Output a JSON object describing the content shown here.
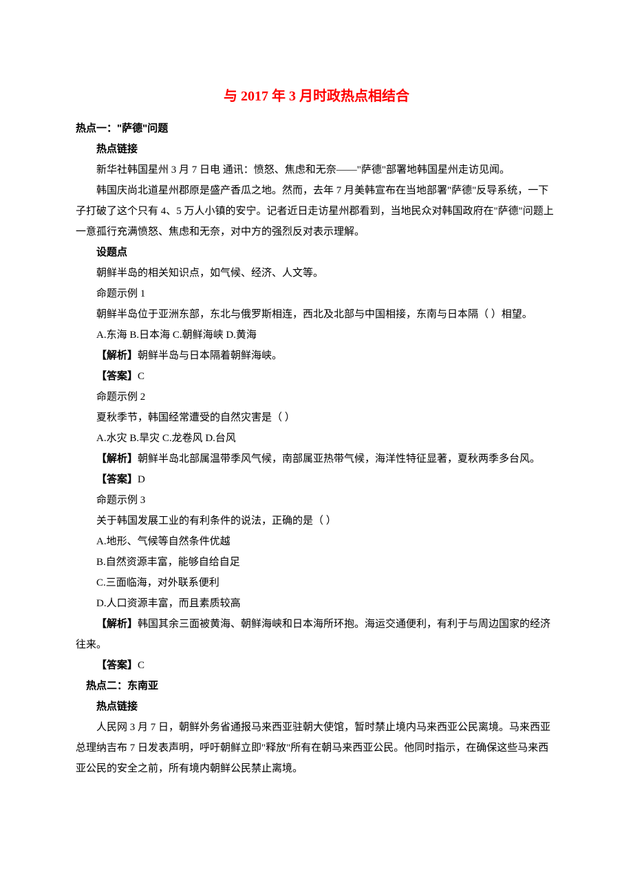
{
  "title": "与 2017 年 3 月时政热点相结合",
  "title_color": "#ff0000",
  "text_color": "#000000",
  "bg_color": "#ffffff",
  "font_family_body": "SimSun",
  "font_family_bold": "SimHei",
  "font_size_title": 20,
  "font_size_body": 15,
  "line_height": 2.0,
  "hotspot1": {
    "heading": "热点一：\"萨德\"问题",
    "link_label": "热点链接",
    "link_p1": "新华社韩国星州 3 月 7 日电 通讯：愤怒、焦虑和无奈——\"萨德\"部署地韩国星州走访见闻。",
    "link_p2": "韩国庆尚北道星州郡原是盛产香瓜之地。然而，去年 7 月美韩宣布在当地部署\"萨德\"反导系统，一下子打破了这个只有 4、5 万人小镇的安宁。记者近日走访星州郡看到，当地民众对韩国政府在\"萨德\"问题上一意孤行充满愤怒、焦虑和无奈，对中方的强烈反对表示理解。",
    "topic_label": "设题点",
    "topic_text": "朝鲜半岛的相关知识点，如气候、经济、人文等。",
    "ex1": {
      "label": "命题示例 1",
      "stem": "朝鲜半岛位于亚洲东部，东北与俄罗斯相连，西北及北部与中国相接，东南与日本隔（ ）相望。",
      "options": "A.东海  B.日本海  C.朝鲜海峡  D.黄海",
      "analysis_label": "【解析】",
      "analysis": "朝鲜半岛与日本隔着朝鲜海峡。",
      "answer_label": "【答案】",
      "answer": "C"
    },
    "ex2": {
      "label": "命题示例 2",
      "stem": "夏秋季节，韩国经常遭受的自然灾害是（ ）",
      "options": "A.水灾  B.旱灾  C.龙卷风  D.台风",
      "analysis_label": "【解析】",
      "analysis": "朝鲜半岛北部属温带季风气候，南部属亚热带气候，海洋性特征显著，夏秋两季多台风。",
      "answer_label": "【答案】",
      "answer": "D"
    },
    "ex3": {
      "label": "命题示例 3",
      "stem": "关于韩国发展工业的有利条件的说法，正确的是（ ）",
      "optA": "A.地形、气候等自然条件优越",
      "optB": "B.自然资源丰富，能够自给自足",
      "optC": "C.三面临海，对外联系便利",
      "optD": "D.人口资源丰富，而且素质较高",
      "analysis_label": "【解析】",
      "analysis": "韩国其余三面被黄海、朝鲜海峡和日本海所环抱。海运交通便利，有利于与周边国家的经济往来。",
      "answer_label": "【答案】",
      "answer": "C"
    }
  },
  "hotspot2": {
    "heading": "热点二：东南亚",
    "link_label": "热点链接",
    "link_p1": "人民网 3 月 7 日，朝鲜外务省通报马来西亚驻朝大使馆，暂时禁止境内马来西亚公民离境。马来西亚总理纳吉布 7 日发表声明，呼吁朝鲜立即\"释放\"所有在朝马来西亚公民。他同时指示，在确保这些马来西亚公民的安全之前，所有境内朝鲜公民禁止离境。"
  }
}
